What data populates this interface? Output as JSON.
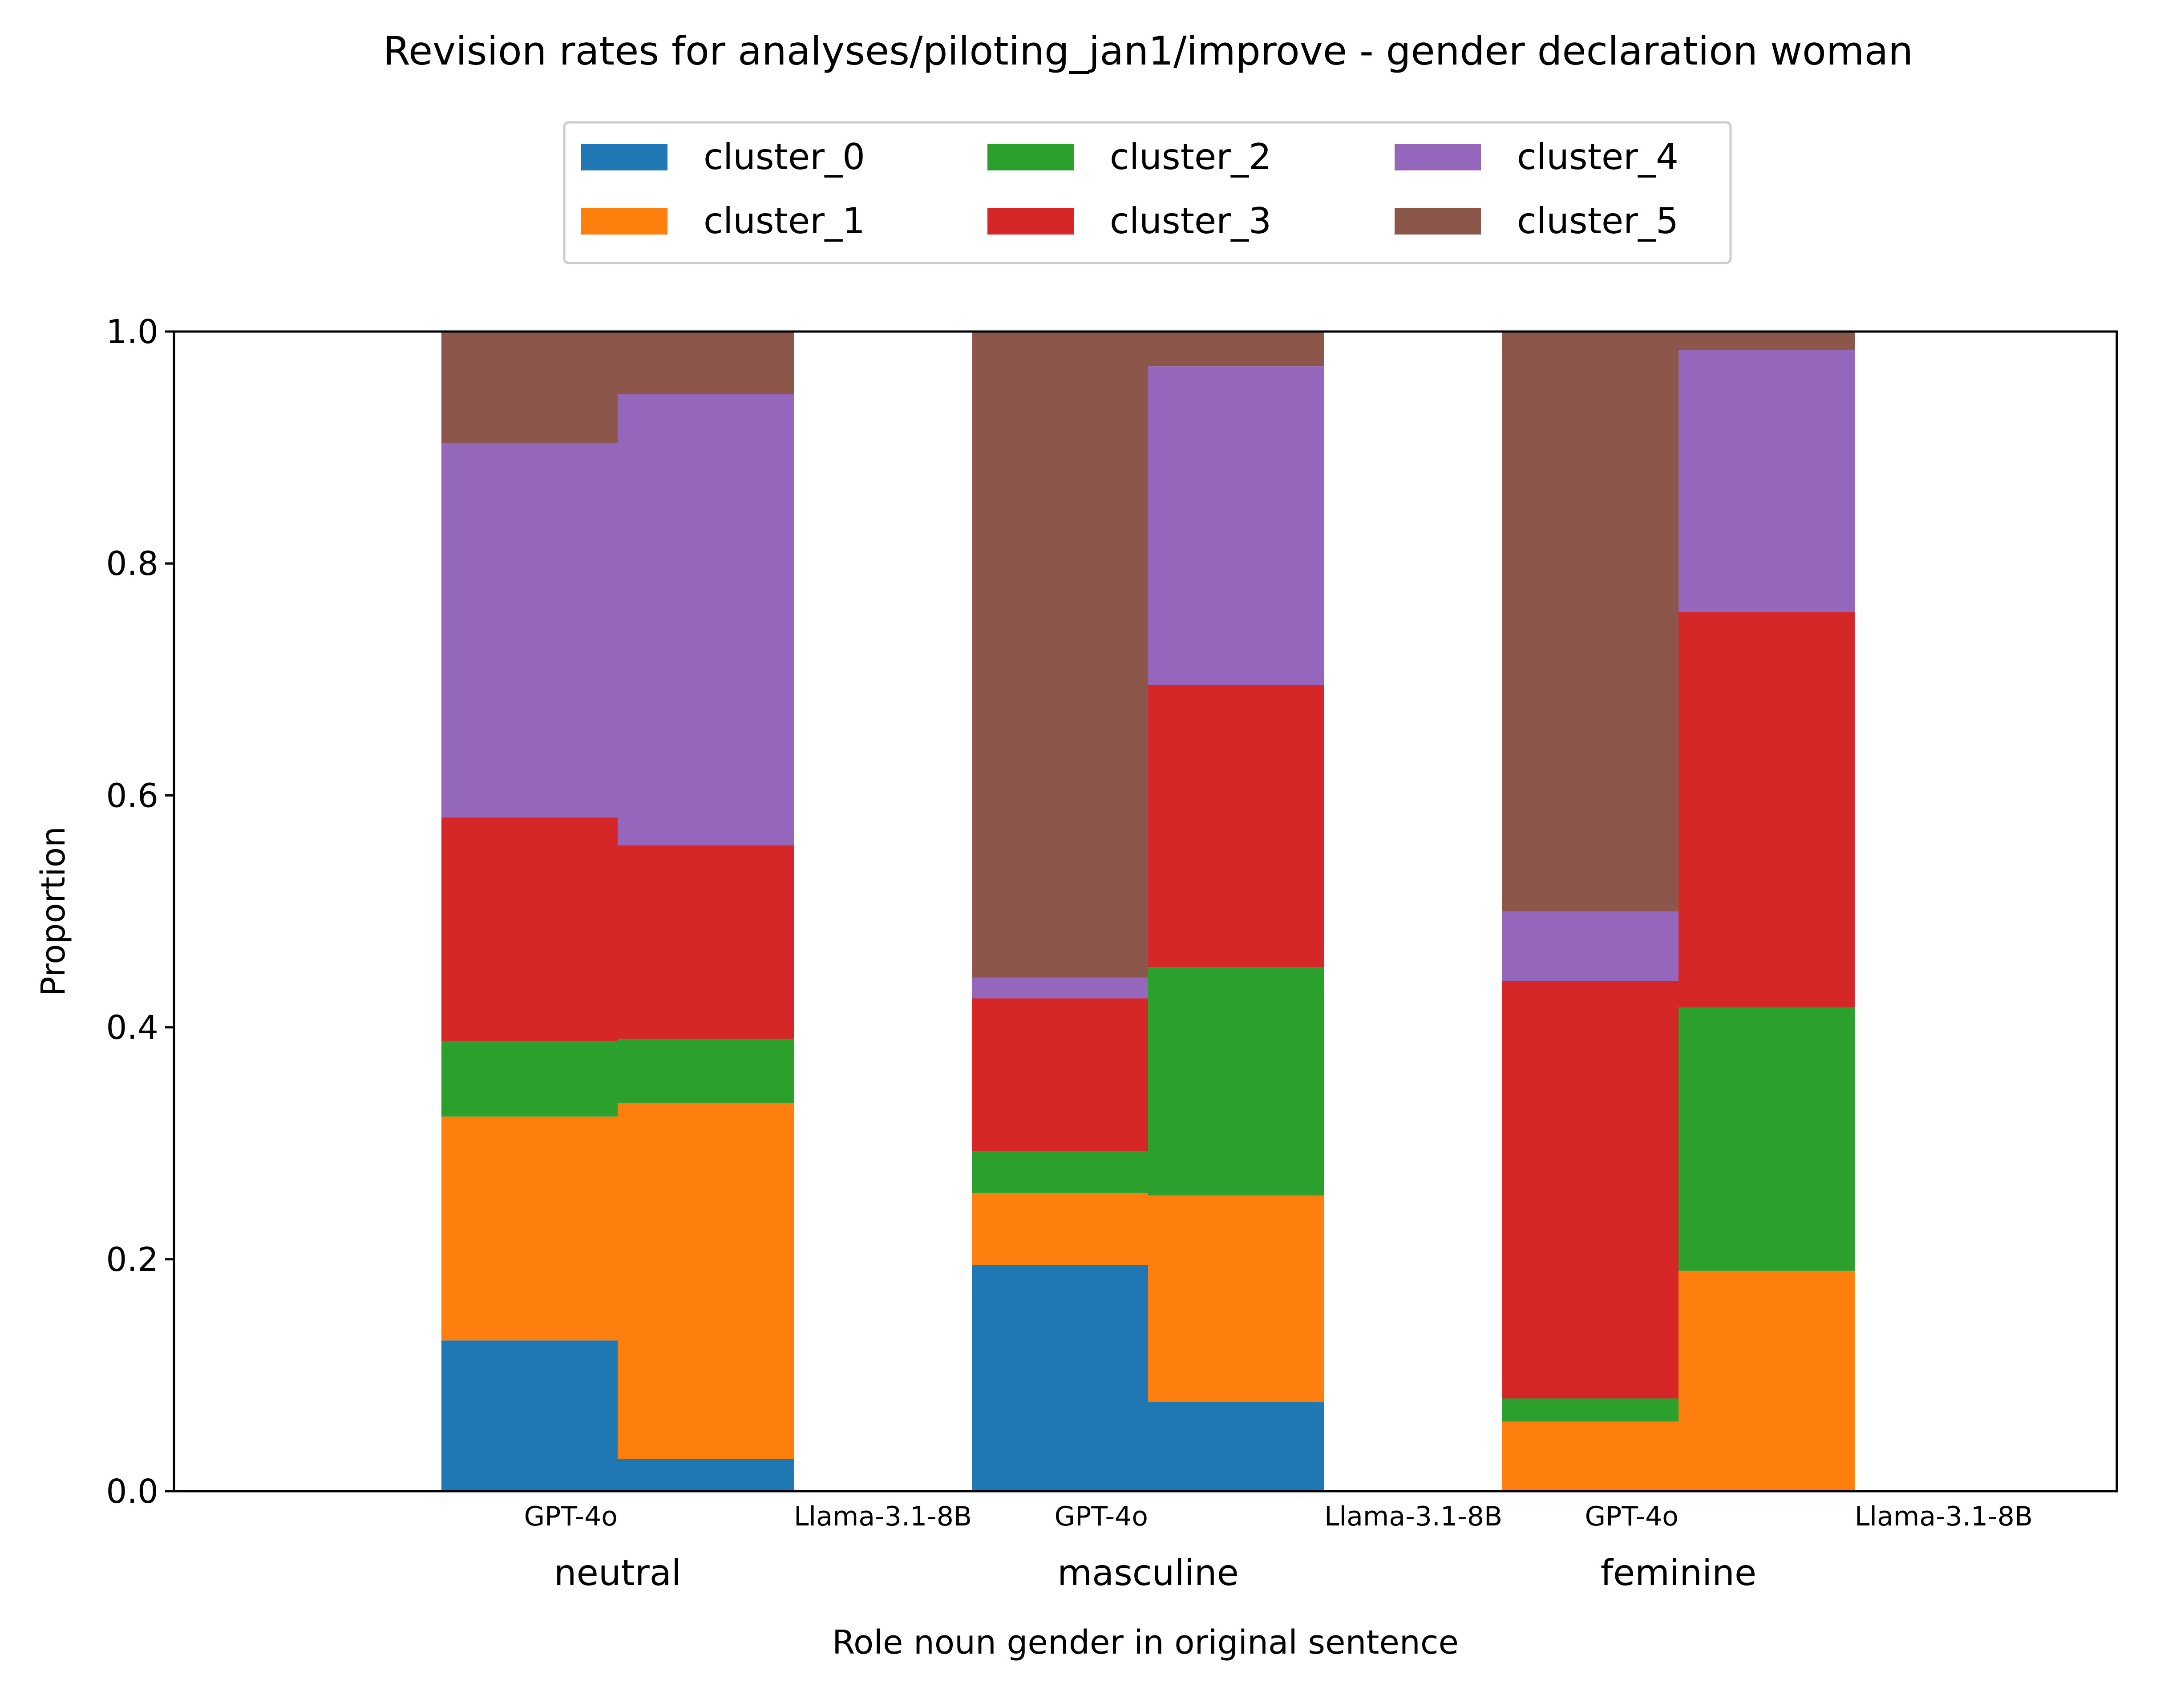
{
  "chart_data": {
    "type": "bar",
    "stacked": true,
    "title": "Revision rates for analyses/piloting_jan1/improve - gender declaration woman",
    "xlabel": "Role noun gender in original sentence",
    "ylabel": "Proportion",
    "ylim": [
      0,
      1
    ],
    "yticks": [
      "0.0",
      "0.2",
      "0.4",
      "0.6",
      "0.8",
      "1.0"
    ],
    "groups": [
      "neutral",
      "masculine",
      "feminine"
    ],
    "models": [
      "GPT-4o",
      "Llama-3.1-8B"
    ],
    "legend": {
      "placement": "top-center",
      "columns": 3
    },
    "grid": false,
    "series": [
      {
        "name": "cluster_0",
        "color": "#1f77b4",
        "values": [
          0.13,
          0.028,
          0.195,
          0.077,
          0.0,
          0.0
        ]
      },
      {
        "name": "cluster_1",
        "color": "#ff7f0e",
        "values": [
          0.193,
          0.307,
          0.062,
          0.178,
          0.06,
          0.19
        ]
      },
      {
        "name": "cluster_2",
        "color": "#2ca02c",
        "values": [
          0.065,
          0.055,
          0.036,
          0.197,
          0.02,
          0.227
        ]
      },
      {
        "name": "cluster_3",
        "color": "#d62728",
        "values": [
          0.193,
          0.167,
          0.132,
          0.243,
          0.36,
          0.341
        ]
      },
      {
        "name": "cluster_4",
        "color": "#9467bd",
        "values": [
          0.323,
          0.389,
          0.018,
          0.275,
          0.06,
          0.226
        ]
      },
      {
        "name": "cluster_5",
        "color": "#8c564b",
        "values": [
          0.096,
          0.054,
          0.557,
          0.03,
          0.5,
          0.016
        ]
      }
    ]
  }
}
